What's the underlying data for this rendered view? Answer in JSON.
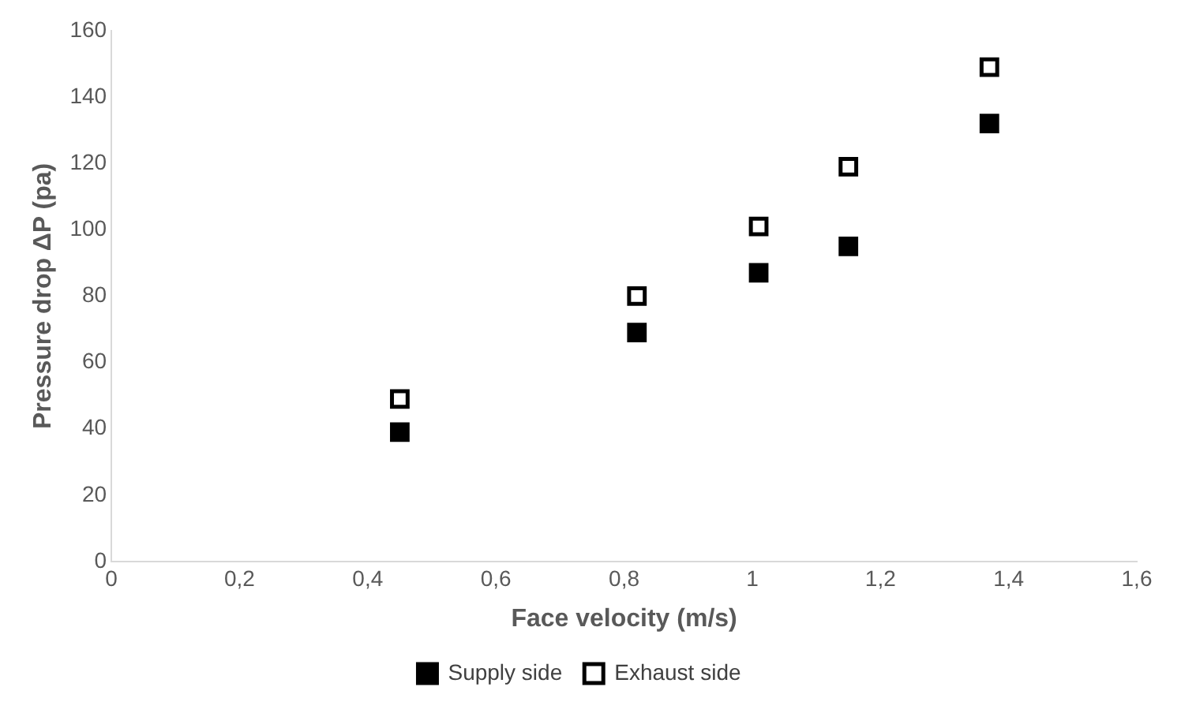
{
  "chart_data": {
    "type": "scatter",
    "xlabel": "Face velocity (m/s)",
    "ylabel": "Pressure drop ΔP (pa)",
    "xlim": [
      0,
      1.6
    ],
    "xticks": [
      {
        "value": 0,
        "label": "0"
      },
      {
        "value": 0.2,
        "label": "0,2"
      },
      {
        "value": 0.4,
        "label": "0,4"
      },
      {
        "value": 0.6,
        "label": "0,6"
      },
      {
        "value": 0.8,
        "label": "0,8"
      },
      {
        "value": 1,
        "label": "1"
      },
      {
        "value": 1.2,
        "label": "1,2"
      },
      {
        "value": 1.4,
        "label": "1,4"
      },
      {
        "value": 1.6,
        "label": "1,6"
      }
    ],
    "ylim": [
      0,
      160
    ],
    "yticks": [
      0,
      20,
      40,
      60,
      80,
      100,
      120,
      140,
      160
    ],
    "x": [
      0.45,
      0.82,
      1.01,
      1.15,
      1.37
    ],
    "series": [
      {
        "name": "Supply side",
        "color": "#000000",
        "values": [
          39,
          69,
          87,
          95,
          132
        ]
      },
      {
        "name": "Exhaust side",
        "color": "#000000",
        "values": [
          49,
          80,
          101,
          119,
          149
        ]
      }
    ],
    "marker": "square",
    "legend": "bottom",
    "grid": false
  }
}
